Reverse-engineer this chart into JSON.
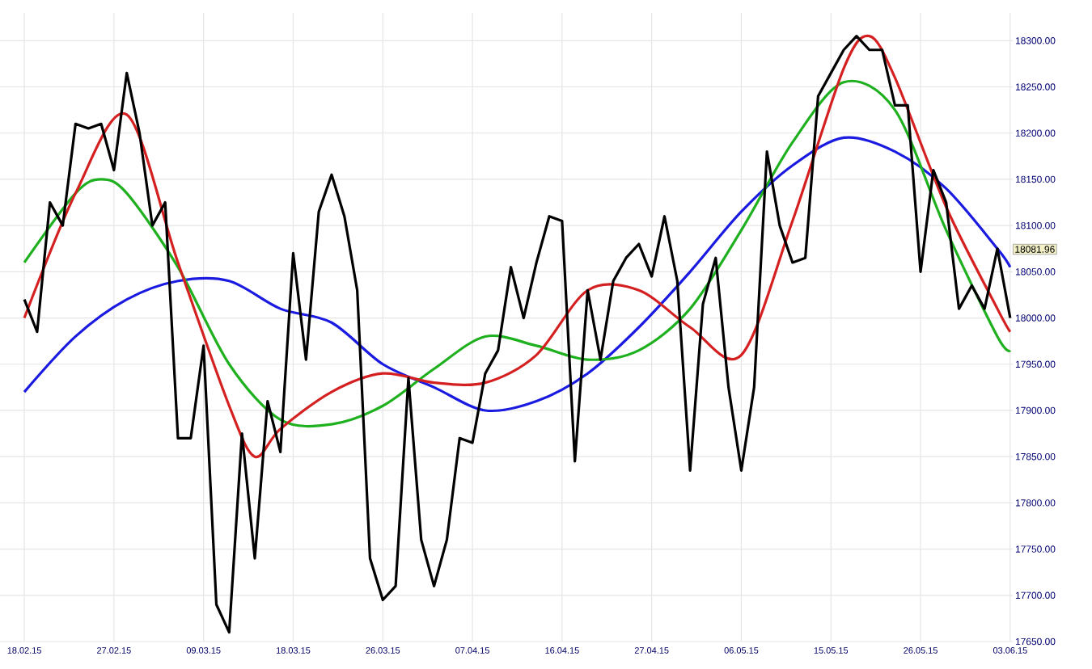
{
  "chart_data": {
    "type": "line",
    "categories": [
      "18.02.15",
      null,
      null,
      null,
      null,
      null,
      null,
      "27.02.15",
      null,
      null,
      null,
      null,
      null,
      null,
      "09.03.15",
      null,
      null,
      null,
      null,
      null,
      null,
      "18.03.15",
      null,
      null,
      null,
      null,
      null,
      null,
      "26.03.15",
      null,
      null,
      null,
      null,
      null,
      null,
      "07.04.15",
      null,
      null,
      null,
      null,
      null,
      null,
      "16.04.15",
      null,
      null,
      null,
      null,
      null,
      null,
      "27.04.15",
      null,
      null,
      null,
      null,
      null,
      null,
      "06.05.15",
      null,
      null,
      null,
      null,
      null,
      null,
      "15.05.15",
      null,
      null,
      null,
      null,
      null,
      null,
      "26.05.15",
      null,
      null,
      null,
      null,
      null,
      null,
      "03.06.15"
    ],
    "ylim": [
      17650,
      18330
    ],
    "yticks": [
      {
        "value": 17650,
        "label": "17650.00"
      },
      {
        "value": 17700,
        "label": "17700.00"
      },
      {
        "value": 17750,
        "label": "17750.00"
      },
      {
        "value": 17800,
        "label": "17800.00"
      },
      {
        "value": 17850,
        "label": "17850.00"
      },
      {
        "value": 17900,
        "label": "17900.00"
      },
      {
        "value": 17950,
        "label": "17950.00"
      },
      {
        "value": 18000,
        "label": "18000.00"
      },
      {
        "value": 18050,
        "label": "18050.00"
      },
      {
        "value": 18100,
        "label": "18100.00"
      },
      {
        "value": 18150,
        "label": "18150.00"
      },
      {
        "value": 18200,
        "label": "18200.00"
      },
      {
        "value": 18250,
        "label": "18250.00"
      },
      {
        "value": 18300,
        "label": "18300.00"
      }
    ],
    "grid": true,
    "annotations": [
      "18081.96"
    ],
    "series": [
      {
        "color": "#1a1ae0",
        "values": [
          17920,
          null,
          null,
          null,
          17980,
          null,
          null,
          null,
          18020,
          null,
          null,
          null,
          18040,
          null,
          null,
          null,
          18040,
          null,
          null,
          null,
          18010,
          null,
          null,
          null,
          17995,
          null,
          null,
          null,
          17950,
          null,
          null,
          null,
          17925,
          null,
          null,
          null,
          17900,
          null,
          null,
          null,
          17910,
          null,
          null,
          null,
          17940,
          null,
          null,
          null,
          17990,
          null,
          null,
          null,
          18050,
          null,
          null,
          null,
          18115,
          null,
          null,
          null,
          18165,
          null,
          null,
          null,
          18195,
          null,
          null,
          null,
          18180,
          null,
          null,
          null,
          18140,
          null,
          null,
          null,
          18075,
          18055
        ]
      },
      {
        "color": "#1fb01f",
        "values": [
          18060,
          null,
          null,
          null,
          18135,
          null,
          18150,
          null,
          18135,
          null,
          null,
          null,
          18055,
          null,
          null,
          null,
          17950,
          null,
          null,
          null,
          17890,
          null,
          null,
          null,
          17885,
          null,
          null,
          null,
          17905,
          null,
          null,
          null,
          17945,
          null,
          null,
          null,
          17980,
          null,
          null,
          null,
          17970,
          null,
          null,
          null,
          17955,
          null,
          null,
          null,
          17965,
          null,
          null,
          null,
          18010,
          null,
          null,
          null,
          18095,
          null,
          null,
          null,
          18190,
          null,
          null,
          null,
          18255,
          null,
          null,
          null,
          18225,
          null,
          null,
          null,
          18095,
          null,
          null,
          null,
          17980,
          17965
        ]
      },
      {
        "color": "#d42020",
        "values": [
          18000,
          null,
          null,
          null,
          18135,
          null,
          null,
          null,
          18220,
          null,
          null,
          null,
          18060,
          null,
          null,
          null,
          17905,
          null,
          17850,
          null,
          17880,
          null,
          null,
          null,
          17920,
          null,
          null,
          null,
          17940,
          null,
          null,
          null,
          17930,
          null,
          null,
          null,
          17930,
          null,
          null,
          null,
          17960,
          null,
          null,
          null,
          18030,
          null,
          null,
          null,
          18030,
          null,
          null,
          null,
          17990,
          null,
          null,
          null,
          17960,
          null,
          null,
          null,
          18105,
          null,
          null,
          null,
          18270,
          null,
          18305,
          null,
          18260,
          null,
          null,
          null,
          18120,
          null,
          null,
          null,
          18010,
          17985
        ]
      },
      {
        "color": "#000000",
        "values": [
          18020,
          17985,
          18125,
          18100,
          18210,
          18205,
          18210,
          18160,
          18265,
          18200,
          18100,
          18125,
          17870,
          17870,
          17970,
          17690,
          17660,
          17875,
          17740,
          17910,
          17855,
          18070,
          17955,
          18115,
          18155,
          18110,
          18030,
          17740,
          17695,
          17710,
          17935,
          17760,
          17710,
          17760,
          17870,
          17865,
          17940,
          17965,
          18055,
          18000,
          18060,
          18110,
          18105,
          17845,
          18030,
          17955,
          18040,
          18065,
          18080,
          18045,
          18110,
          18040,
          17835,
          18015,
          18065,
          17925,
          17835,
          17925,
          18180,
          18100,
          18060,
          18065,
          18240,
          18265,
          18290,
          18305,
          18290,
          18290,
          18230,
          18230,
          18050,
          18160,
          18125,
          18010,
          18035,
          18010,
          18075,
          18000
        ]
      }
    ]
  }
}
